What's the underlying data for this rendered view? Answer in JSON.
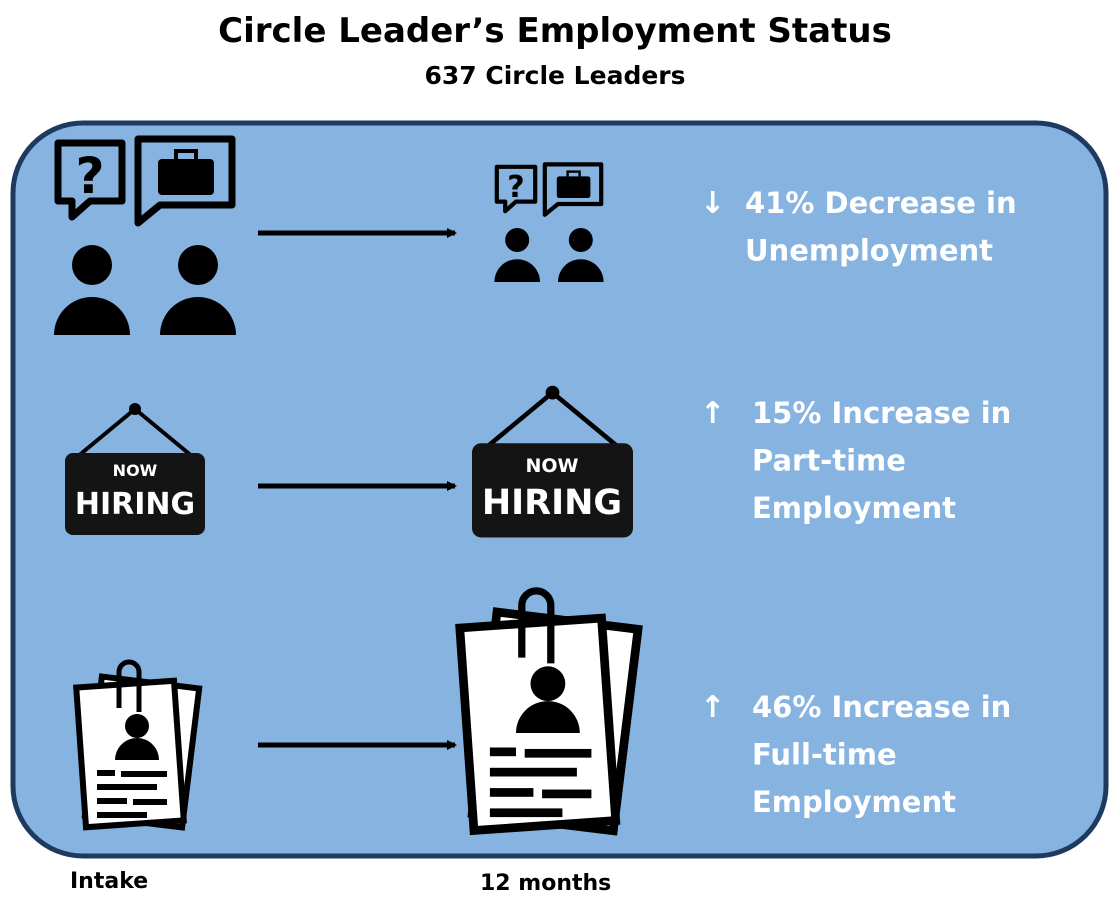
{
  "header": {
    "title": "Circle Leader’s Employment Status",
    "subtitle": "637 Circle Leaders"
  },
  "rows": [
    {
      "arrow": "↓",
      "lines": [
        "41% Decrease in",
        "Unemployment"
      ]
    },
    {
      "arrow": "↑",
      "lines": [
        "15% Increase in",
        "Part-time",
        "Employment"
      ]
    },
    {
      "arrow": "↑",
      "lines": [
        "46% Increase in",
        "Full-time",
        "Employment"
      ]
    }
  ],
  "sign": {
    "top": "NOW",
    "bottom": "HIRING"
  },
  "footer": {
    "start": "Intake",
    "end": "12 months"
  }
}
